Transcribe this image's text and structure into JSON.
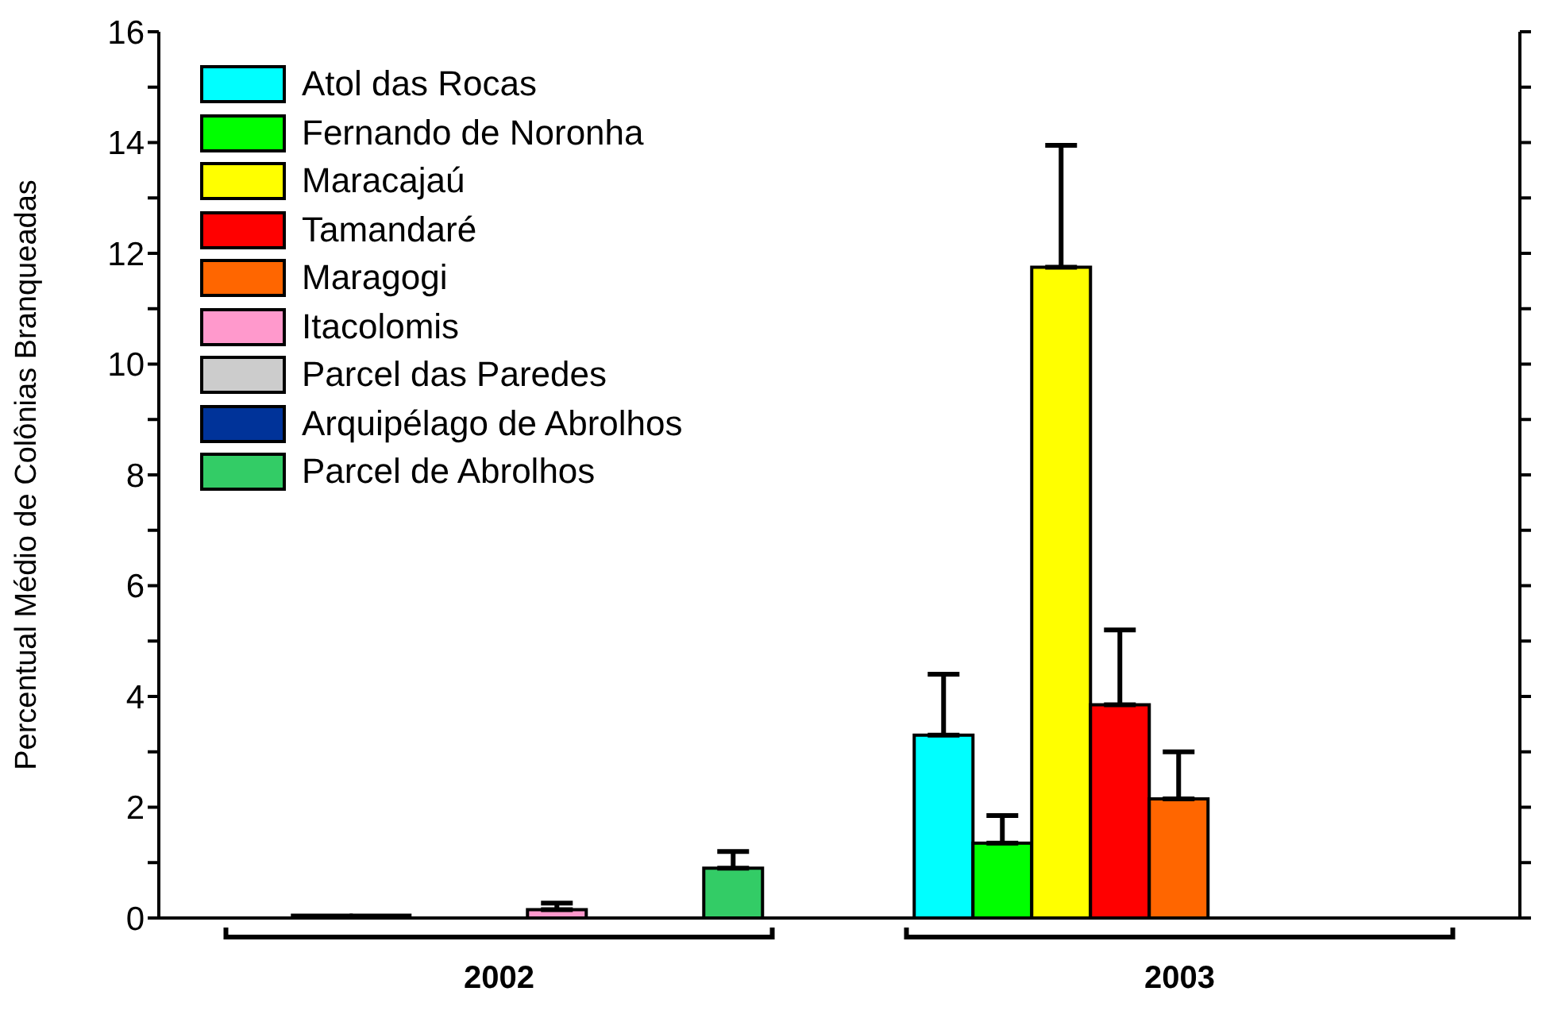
{
  "chart_data": {
    "type": "bar",
    "ylabel": "Percentual Médio de Colônias Branqueadas",
    "categories": [
      "2002",
      "2003"
    ],
    "series": [
      {
        "name": "Atol das Rocas",
        "color": "#00ffff",
        "values": [
          null,
          3.3
        ],
        "errors": [
          null,
          [
            3.3,
            4.4
          ]
        ]
      },
      {
        "name": "Fernando de Noronha",
        "color": "#00ff00",
        "values": [
          0.05,
          1.35
        ],
        "errors": [
          null,
          [
            1.35,
            1.85
          ]
        ]
      },
      {
        "name": "Maracajaú",
        "color": "#ffff00",
        "values": [
          0.05,
          11.75
        ],
        "errors": [
          null,
          [
            11.75,
            13.95
          ]
        ]
      },
      {
        "name": "Tamandaré",
        "color": "#ff0000",
        "values": [
          null,
          3.85
        ],
        "errors": [
          null,
          [
            3.85,
            5.2
          ]
        ]
      },
      {
        "name": "Maragogi",
        "color": "#ff6600",
        "values": [
          null,
          2.15
        ],
        "errors": [
          null,
          [
            2.15,
            3.0
          ]
        ]
      },
      {
        "name": "Itacolomis",
        "color": "#ff99cc",
        "values": [
          0.15,
          null
        ],
        "errors": [
          [
            0.15,
            0.27
          ],
          null
        ]
      },
      {
        "name": "Parcel das Paredes",
        "color": "#cccccc",
        "values": [
          null,
          null
        ]
      },
      {
        "name": "Arquipélago de Abrolhos",
        "color": "#003399",
        "values": [
          null,
          null
        ]
      },
      {
        "name": "Parcel de Abrolhos",
        "color": "#33cc66",
        "values": [
          0.9,
          null
        ],
        "errors": [
          [
            0.9,
            1.2
          ],
          null
        ]
      }
    ],
    "ylim": [
      0,
      16
    ],
    "yticks": [
      0,
      {
        "value": 1,
        "label": null
      },
      2,
      {
        "value": 3,
        "label": null
      },
      4,
      {
        "value": 5,
        "label": null
      },
      6,
      {
        "value": 7,
        "label": null
      },
      8,
      {
        "value": 9,
        "label": null
      },
      10,
      {
        "value": 11,
        "label": null
      },
      12,
      {
        "value": 13,
        "label": null
      },
      14,
      {
        "value": 15,
        "label": null
      },
      16
    ],
    "legend": "top left"
  }
}
